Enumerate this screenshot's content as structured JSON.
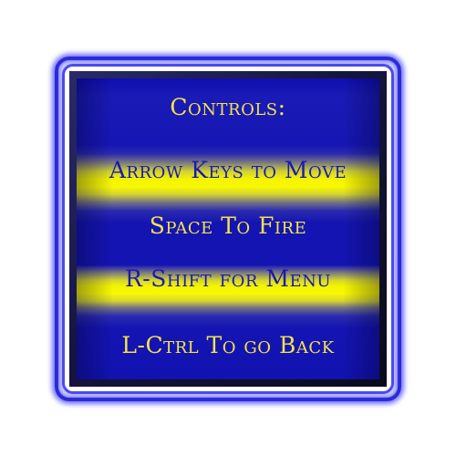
{
  "controls_panel": {
    "title": "Controls:",
    "lines": [
      "Arrow Keys to Move",
      "Space To Fire",
      "R-Shift for Menu",
      "L-Ctrl To go Back"
    ]
  },
  "colors": {
    "panel_blue": "#1414b2",
    "band_yellow": "#f8f800",
    "text_gold": "#f2e24a",
    "text_blue": "#1a1ab0",
    "glow": "#6b6bff"
  }
}
